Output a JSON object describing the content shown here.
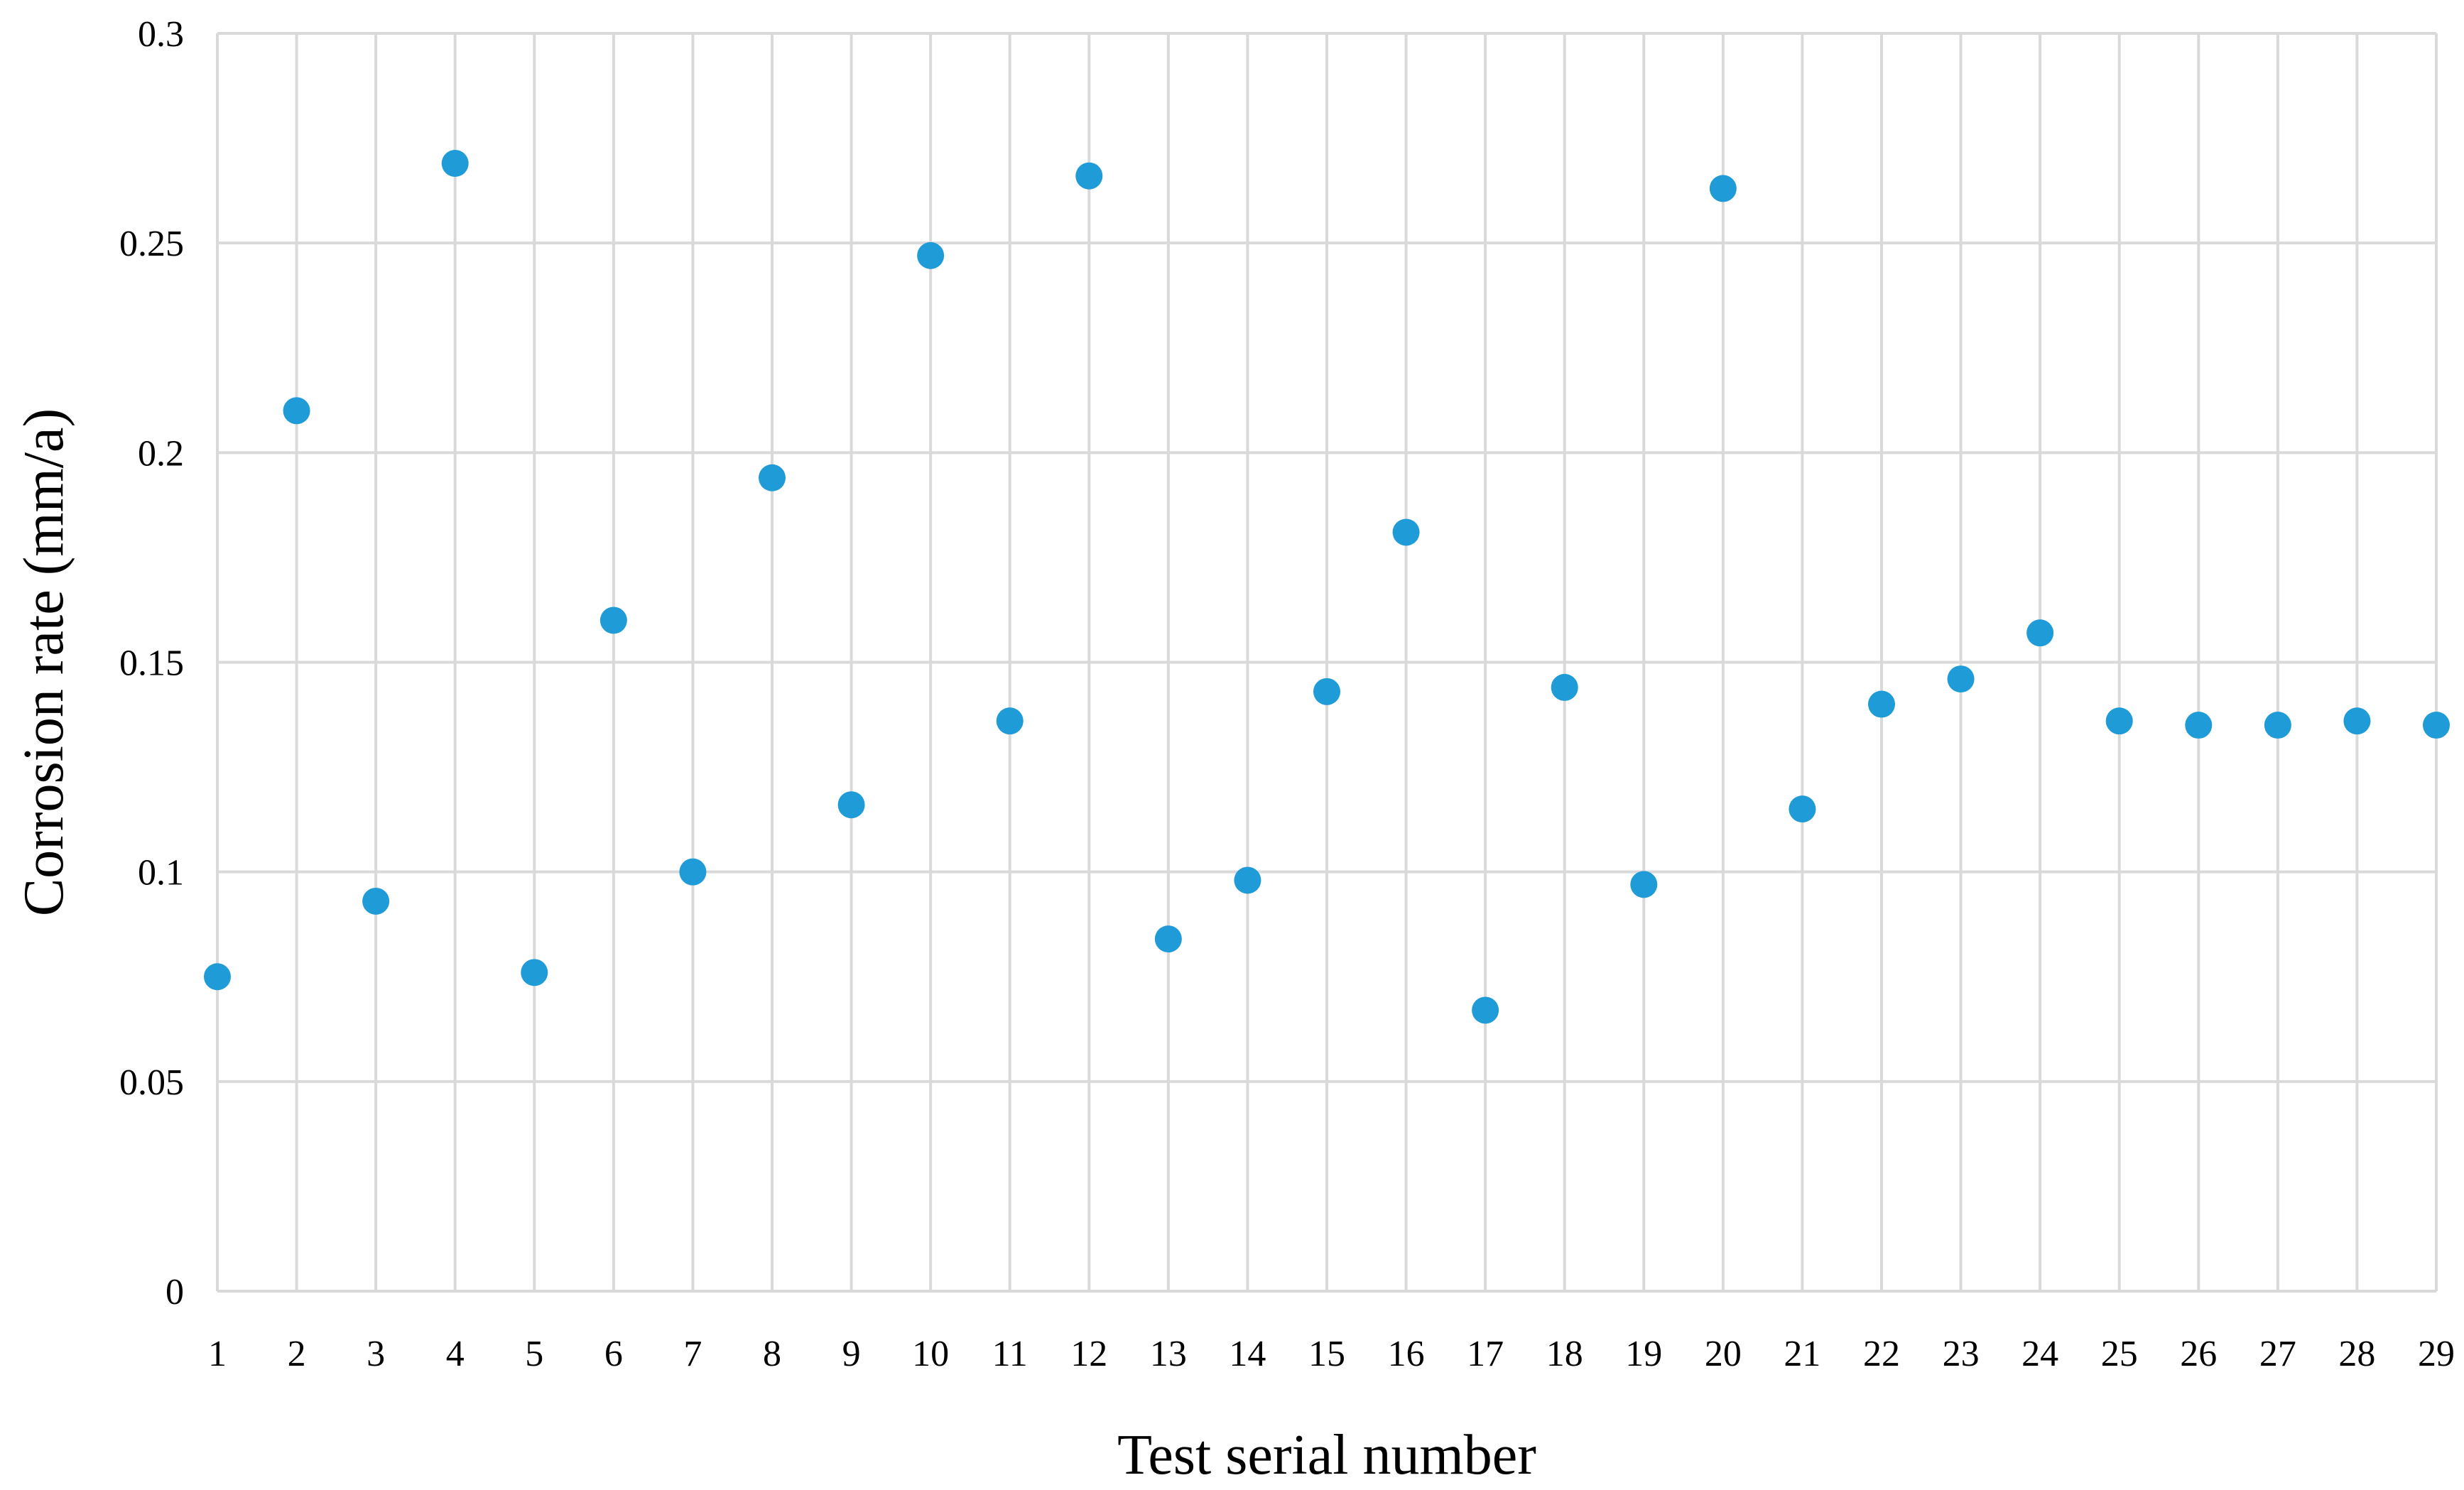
{
  "chart_data": {
    "type": "scatter",
    "title": "",
    "xlabel": "Test serial number",
    "ylabel": "Corrosion  rate (mm/a)",
    "x": [
      1,
      2,
      3,
      4,
      5,
      6,
      7,
      8,
      9,
      10,
      11,
      12,
      13,
      14,
      15,
      16,
      17,
      18,
      19,
      20,
      21,
      22,
      23,
      24,
      25,
      26,
      27,
      28,
      29
    ],
    "y": [
      0.075,
      0.21,
      0.093,
      0.269,
      0.076,
      0.16,
      0.1,
      0.194,
      0.116,
      0.247,
      0.136,
      0.266,
      0.084,
      0.098,
      0.143,
      0.181,
      0.067,
      0.144,
      0.097,
      0.263,
      0.115,
      0.14,
      0.146,
      0.157,
      0.136,
      0.135,
      0.135,
      0.136,
      0.135
    ],
    "xlim": [
      1,
      29
    ],
    "ylim": [
      0,
      0.3
    ],
    "x_ticks": [
      "1",
      "2",
      "3",
      "4",
      "5",
      "6",
      "7",
      "8",
      "9",
      "10",
      "11",
      "12",
      "13",
      "14",
      "15",
      "16",
      "17",
      "18",
      "19",
      "20",
      "21",
      "22",
      "23",
      "24",
      "25",
      "26",
      "27",
      "28",
      "29"
    ],
    "y_ticks": [
      {
        "value": 0,
        "label": "0"
      },
      {
        "value": 0.05,
        "label": "0.05"
      },
      {
        "value": 0.1,
        "label": "0.1"
      },
      {
        "value": 0.15,
        "label": "0.15"
      },
      {
        "value": 0.2,
        "label": "0.2"
      },
      {
        "value": 0.25,
        "label": "0.25"
      },
      {
        "value": 0.3,
        "label": "0.3"
      }
    ],
    "grid": true,
    "legend": "none",
    "marker_color": "#1f9bd7",
    "grid_color": "#d9d9d9"
  }
}
